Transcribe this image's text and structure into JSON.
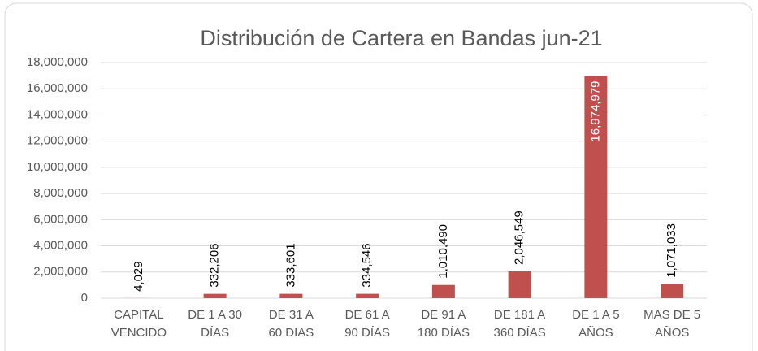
{
  "chart_data": {
    "type": "bar",
    "title": "Distribución de Cartera en Bandas jun-21",
    "categories": [
      [
        "CAPITAL",
        "VENCIDO"
      ],
      [
        "DE 1 A 30",
        "DÍAS"
      ],
      [
        "DE 31 A",
        "60 DIAS"
      ],
      [
        "DE 61 A",
        "90 DÍAS"
      ],
      [
        "DE 91 A",
        "180 DÍAS"
      ],
      [
        "DE 181 A",
        "360 DÍAS"
      ],
      [
        "DE 1 A 5",
        "AÑOS"
      ],
      [
        "MAS DE 5",
        "AÑOS"
      ]
    ],
    "values": [
      4029,
      332206,
      333601,
      334546,
      1010490,
      2046549,
      16974979,
      1071033
    ],
    "value_labels": [
      "4,029",
      "332,206",
      "333,601",
      "334,546",
      "1,010,490",
      "2,046,549",
      "16,974,979",
      "1,071,033"
    ],
    "color": "#c0504d",
    "ylim": [
      0,
      18000000
    ],
    "yticks": [
      0,
      {
        "value": 2000000,
        "label": "2,000,000"
      },
      {
        "value": 4000000,
        "label": "4,000,000"
      },
      {
        "value": 6000000,
        "label": "6,000,000"
      },
      {
        "value": 8000000,
        "label": "8,000,000"
      },
      {
        "value": 10000000,
        "label": "10,000,000"
      },
      {
        "value": 12000000,
        "label": "12,000,000"
      },
      {
        "value": 14000000,
        "label": "14,000,000"
      },
      {
        "value": 16000000,
        "label": "16,000,000"
      },
      {
        "value": 18000000,
        "label": "18,000,000"
      }
    ],
    "grid": true
  }
}
